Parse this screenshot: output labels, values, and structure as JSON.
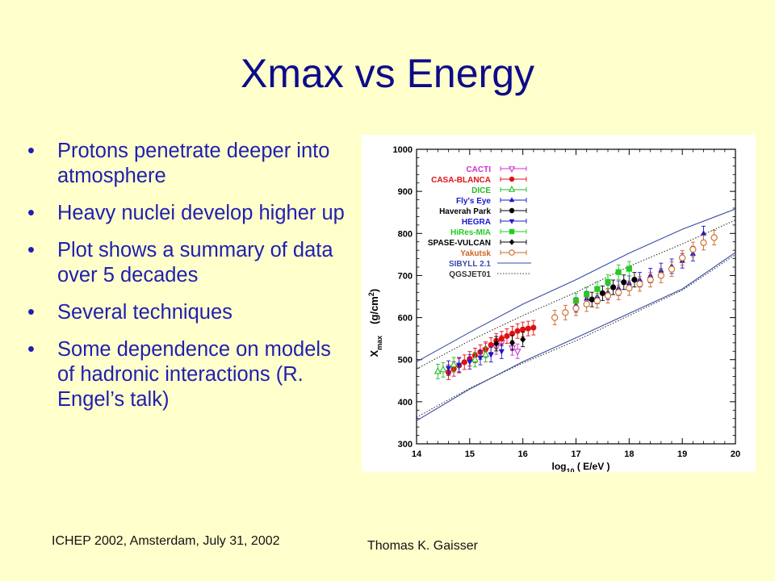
{
  "slide": {
    "title": "Xmax vs Energy",
    "bullets": [
      "Protons penetrate deeper into atmosphere",
      "Heavy nuclei develop higher up",
      "Plot shows a summary of data over 5 decades",
      "Several techniques",
      "Some dependence on models of hadronic interactions (R. Engel’s talk)"
    ],
    "bullet_glyph": "•",
    "footer_left": "ICHEP 2002, Amsterdam, July 31, 2002",
    "footer_right": "Thomas K. Gaisser",
    "colors": {
      "background": "#ffffcc",
      "title": "#0c0c8a",
      "text": "#1f1fb0"
    }
  },
  "chart_data": {
    "type": "scatter",
    "xlabel_main": "log",
    "xlabel_sub": "10",
    "xlabel_rest": " ( E/eV )",
    "ylabel_main": "X",
    "ylabel_sub": "max",
    "ylabel_unit": "(g/cm",
    "ylabel_sup": "2",
    "ylabel_close": ")",
    "xlim": [
      14,
      20
    ],
    "ylim": [
      300,
      1000
    ],
    "xticks": [
      "14",
      "15",
      "16",
      "17",
      "18",
      "19",
      "20"
    ],
    "yticks": [
      "300",
      "400",
      "500",
      "600",
      "700",
      "800",
      "900",
      "1000"
    ],
    "legend_position": "top-left",
    "series": [
      {
        "name": "CACTI",
        "color": "#cc33cc",
        "marker": "tri-down-open",
        "points": [
          [
            15.3,
            522
          ],
          [
            15.5,
            530
          ],
          [
            15.6,
            540
          ],
          [
            15.8,
            528
          ],
          [
            15.9,
            520
          ]
        ]
      },
      {
        "name": "CASA-BLANCA",
        "color": "#e01010",
        "marker": "circle",
        "points": [
          [
            14.6,
            470
          ],
          [
            14.7,
            478
          ],
          [
            14.8,
            486
          ],
          [
            14.9,
            494
          ],
          [
            15.0,
            502
          ],
          [
            15.1,
            510
          ],
          [
            15.2,
            518
          ],
          [
            15.3,
            525
          ],
          [
            15.4,
            535
          ],
          [
            15.5,
            545
          ],
          [
            15.6,
            550
          ],
          [
            15.7,
            556
          ],
          [
            15.8,
            562
          ],
          [
            15.9,
            568
          ],
          [
            16.0,
            572
          ],
          [
            16.1,
            574
          ],
          [
            16.2,
            576
          ]
        ]
      },
      {
        "name": "DICE",
        "color": "#22bb22",
        "marker": "tri-up-open",
        "points": [
          [
            14.4,
            472
          ],
          [
            14.5,
            476
          ],
          [
            14.7,
            488
          ],
          [
            15.1,
            500
          ],
          [
            15.3,
            512
          ]
        ]
      },
      {
        "name": "Fly's Eye",
        "color": "#1a1acc",
        "marker": "tri-up",
        "points": [
          [
            17.0,
            630
          ],
          [
            17.2,
            645
          ],
          [
            17.4,
            650
          ],
          [
            17.6,
            660
          ],
          [
            17.8,
            670
          ],
          [
            18.0,
            682
          ],
          [
            18.2,
            690
          ],
          [
            18.4,
            700
          ],
          [
            18.6,
            712
          ],
          [
            18.8,
            722
          ],
          [
            19.0,
            735
          ],
          [
            19.2,
            752
          ],
          [
            19.4,
            800
          ]
        ]
      },
      {
        "name": "Haverah Park",
        "color": "#000000",
        "marker": "circle",
        "points": [
          [
            17.3,
            643
          ],
          [
            17.5,
            658
          ],
          [
            17.7,
            672
          ],
          [
            17.9,
            684
          ],
          [
            18.1,
            690
          ]
        ]
      },
      {
        "name": "HEGRA",
        "color": "#1a1acc",
        "marker": "tri-down",
        "points": [
          [
            14.6,
            480
          ],
          [
            14.8,
            488
          ],
          [
            15.0,
            495
          ],
          [
            15.2,
            505
          ],
          [
            15.4,
            512
          ],
          [
            15.6,
            520
          ]
        ]
      },
      {
        "name": "HiRes-MIA",
        "color": "#22cc22",
        "marker": "square",
        "points": [
          [
            17.0,
            640
          ],
          [
            17.2,
            655
          ],
          [
            17.4,
            668
          ],
          [
            17.6,
            685
          ],
          [
            17.8,
            708
          ],
          [
            18.0,
            716
          ]
        ]
      },
      {
        "name": "SPASE-VULCAN",
        "color": "#000000",
        "marker": "diamond",
        "points": [
          [
            15.5,
            538
          ],
          [
            15.8,
            540
          ],
          [
            16.0,
            548
          ]
        ]
      },
      {
        "name": "Yakutsk",
        "color": "#cc6622",
        "marker": "circle-open",
        "points": [
          [
            16.6,
            600
          ],
          [
            16.8,
            612
          ],
          [
            17.0,
            622
          ],
          [
            17.2,
            632
          ],
          [
            17.4,
            640
          ],
          [
            17.6,
            652
          ],
          [
            17.8,
            660
          ],
          [
            18.0,
            670
          ],
          [
            18.2,
            680
          ],
          [
            18.4,
            690
          ],
          [
            18.6,
            700
          ],
          [
            18.8,
            715
          ],
          [
            19.0,
            742
          ],
          [
            19.2,
            762
          ],
          [
            19.4,
            778
          ],
          [
            19.6,
            790
          ]
        ]
      },
      {
        "name": "SIBYLL 2.1",
        "color": "#3a4aa8",
        "line": "solid",
        "upper": [
          [
            14,
            495
          ],
          [
            15,
            565
          ],
          [
            16,
            632
          ],
          [
            17,
            690
          ],
          [
            18,
            753
          ],
          [
            19,
            810
          ],
          [
            20,
            858
          ]
        ],
        "lower": [
          [
            14,
            355
          ],
          [
            15,
            430
          ],
          [
            16,
            495
          ],
          [
            17,
            552
          ],
          [
            18,
            610
          ],
          [
            19,
            668
          ],
          [
            20,
            755
          ]
        ]
      },
      {
        "name": "QGSJET01",
        "color": "#333333",
        "line": "dotted",
        "upper": [
          [
            14,
            478
          ],
          [
            15,
            545
          ],
          [
            16,
            605
          ],
          [
            17,
            660
          ],
          [
            18,
            722
          ],
          [
            19,
            775
          ],
          [
            20,
            832
          ]
        ],
        "lower": [
          [
            14,
            363
          ],
          [
            15,
            432
          ],
          [
            16,
            492
          ],
          [
            17,
            545
          ],
          [
            18,
            605
          ],
          [
            19,
            665
          ],
          [
            20,
            750
          ]
        ]
      }
    ]
  }
}
